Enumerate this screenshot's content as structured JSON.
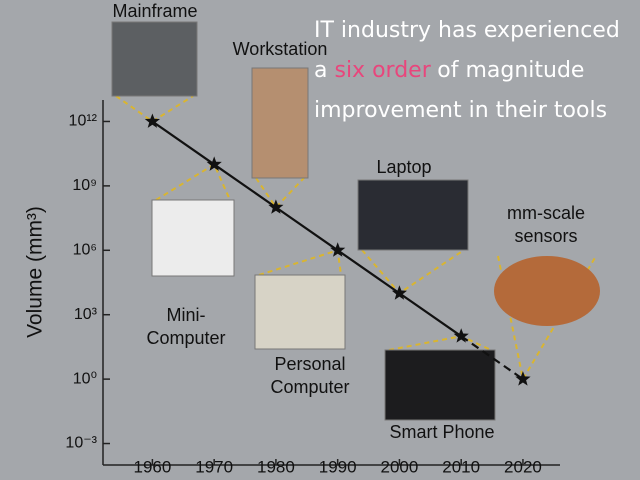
{
  "chart_data": {
    "type": "line",
    "title_lines": [
      [
        {
          "text": "IT industry has experienced",
          "color": "#ffffff"
        }
      ],
      [
        {
          "text": "a",
          "color": "#ffffff"
        },
        {
          "text": "six order",
          "color": "#e8467c"
        },
        {
          "text": "of magnitude",
          "color": "#ffffff"
        }
      ],
      [
        {
          "text": "improvement in their tools",
          "color": "#ffffff"
        }
      ]
    ],
    "y_label": "Volume (mm³)",
    "log_y": true,
    "x": [
      1960,
      1970,
      1980,
      1990,
      2000,
      2010,
      2020
    ],
    "series": [
      {
        "values": [
          1000000000000,
          10000000000,
          100000000,
          1000000,
          10000,
          100,
          1
        ],
        "color": "#111111",
        "dashed_from": 5
      }
    ],
    "labels": [
      [
        "Mainframe"
      ],
      [
        "Mini-",
        "Computer"
      ],
      [
        "Workstation"
      ],
      [
        "Personal",
        "Computer"
      ],
      [
        "Laptop"
      ],
      [
        "Smart Phone"
      ],
      [
        "mm-scale",
        "sensors"
      ]
    ],
    "xlim": [
      1952,
      2026
    ],
    "ylim": [
      0.0001,
      10000000000000
    ],
    "xticks": [
      1960,
      1970,
      1980,
      1990,
      2000,
      2010,
      2020
    ],
    "yticks": [
      {
        "value": 1000000000000,
        "label": "10¹²"
      },
      {
        "value": 1000000000,
        "label": "10⁹"
      },
      {
        "value": 1000000,
        "label": "10⁶"
      },
      {
        "value": 1000,
        "label": "10³"
      },
      {
        "value": 1,
        "label": "10⁰"
      },
      {
        "value": 0.001,
        "label": "10⁻³"
      }
    ]
  }
}
